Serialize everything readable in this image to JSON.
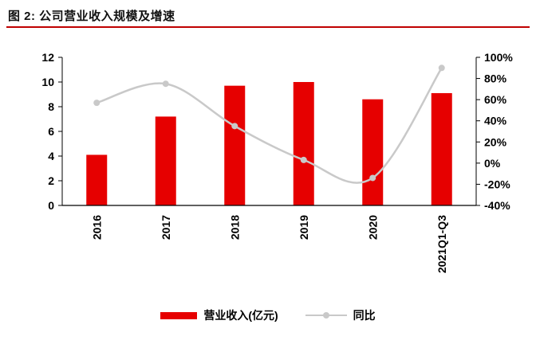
{
  "header": {
    "title": "图 2: 公司营业收入规模及增速"
  },
  "chart_data": {
    "type": "bar",
    "title": "图 2: 公司营业收入规模及增速",
    "categories": [
      "2016",
      "2017",
      "2018",
      "2019",
      "2020",
      "2021Q1-Q3"
    ],
    "series": [
      {
        "name": "营业收入(亿元)",
        "type": "bar",
        "axis": "left",
        "color": "#e60000",
        "values": [
          4.1,
          7.2,
          9.7,
          10.0,
          8.6,
          9.1
        ]
      },
      {
        "name": "同比",
        "type": "line",
        "axis": "right",
        "color": "#c9c9c9",
        "values": [
          57,
          75,
          35,
          3,
          -14,
          90
        ]
      }
    ],
    "left_axis": {
      "min": 0,
      "max": 12,
      "ticks": [
        0,
        2,
        4,
        6,
        8,
        10,
        12
      ],
      "suffix": ""
    },
    "right_axis": {
      "min": -40,
      "max": 100,
      "ticks": [
        -40,
        -20,
        0,
        20,
        40,
        60,
        80,
        100
      ],
      "suffix": "%"
    },
    "legend_position": "bottom",
    "grid": false,
    "x_label_rotation": -90
  },
  "colors": {
    "bar": "#e60000",
    "line": "#c9c9c9",
    "title_rule": "#c00000",
    "axis": "#000000"
  }
}
